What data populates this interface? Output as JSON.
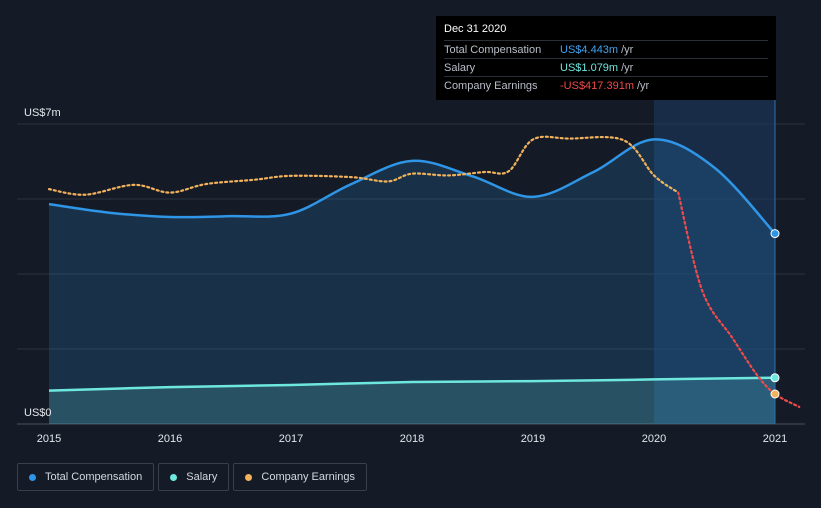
{
  "tooltip": {
    "date": "Dec 31 2020",
    "rows": [
      {
        "label": "Total Compensation",
        "value": "US$4.443m",
        "unit": "/yr",
        "color": "#3fa3f0"
      },
      {
        "label": "Salary",
        "value": "US$1.079m",
        "unit": "/yr",
        "color": "#6ee8df"
      },
      {
        "label": "Company Earnings",
        "value": "-US$417.391m",
        "unit": "/yr",
        "color": "#f04a4a"
      }
    ]
  },
  "legend": [
    {
      "label": "Total Compensation",
      "color": "#2f95e6"
    },
    {
      "label": "Salary",
      "color": "#6ee8df"
    },
    {
      "label": "Company Earnings",
      "color": "#f2b25c"
    }
  ],
  "chart_data": {
    "type": "line",
    "y_ticks": [
      {
        "value": 7,
        "label": "US$7m"
      },
      {
        "value": 0,
        "label": "US$0"
      }
    ],
    "x_ticks": [
      2015,
      2016,
      2017,
      2018,
      2019,
      2020,
      2021
    ],
    "ylim": [
      0,
      7
    ],
    "xlim": [
      2014.75,
      2021.25
    ],
    "grid": true,
    "legend_placement": "bottom-left",
    "highlight_start": 2020,
    "highlight_end": 2021,
    "series": [
      {
        "name": "Total Compensation",
        "color": "#2f95e6",
        "style": "solid-area",
        "points": [
          [
            2015,
            5.13
          ],
          [
            2015.5,
            4.93
          ],
          [
            2016,
            4.83
          ],
          [
            2016.5,
            4.85
          ],
          [
            2017,
            4.91
          ],
          [
            2017.5,
            5.6
          ],
          [
            2018,
            6.14
          ],
          [
            2018.5,
            5.78
          ],
          [
            2019,
            5.3
          ],
          [
            2019.5,
            5.88
          ],
          [
            2020,
            6.64
          ],
          [
            2020.5,
            5.98
          ],
          [
            2021,
            4.443
          ]
        ]
      },
      {
        "name": "Salary",
        "color": "#6ee8df",
        "style": "solid-area",
        "points": [
          [
            2015,
            0.78
          ],
          [
            2016,
            0.86
          ],
          [
            2017,
            0.91
          ],
          [
            2018,
            0.98
          ],
          [
            2019,
            1.0
          ],
          [
            2020,
            1.04
          ],
          [
            2021,
            1.079
          ]
        ]
      },
      {
        "name": "Company Earnings",
        "color": "#f2b25c",
        "negative_color": "#f04a4a",
        "style": "dotted",
        "points": [
          [
            2015,
            5.48
          ],
          [
            2015.3,
            5.35
          ],
          [
            2015.7,
            5.58
          ],
          [
            2016,
            5.4
          ],
          [
            2016.3,
            5.6
          ],
          [
            2016.7,
            5.7
          ],
          [
            2017,
            5.79
          ],
          [
            2017.5,
            5.76
          ],
          [
            2017.8,
            5.66
          ],
          [
            2018,
            5.84
          ],
          [
            2018.3,
            5.8
          ],
          [
            2018.6,
            5.88
          ],
          [
            2018.8,
            5.9
          ],
          [
            2019,
            6.64
          ],
          [
            2019.3,
            6.66
          ],
          [
            2019.75,
            6.62
          ],
          [
            2020,
            5.8
          ],
          [
            2020.2,
            5.4
          ],
          [
            2020.4,
            3.1
          ],
          [
            2020.65,
            2.0
          ],
          [
            2020.85,
            1.15
          ],
          [
            2021,
            0.7
          ],
          [
            2021.2,
            0.4
          ]
        ]
      }
    ]
  }
}
